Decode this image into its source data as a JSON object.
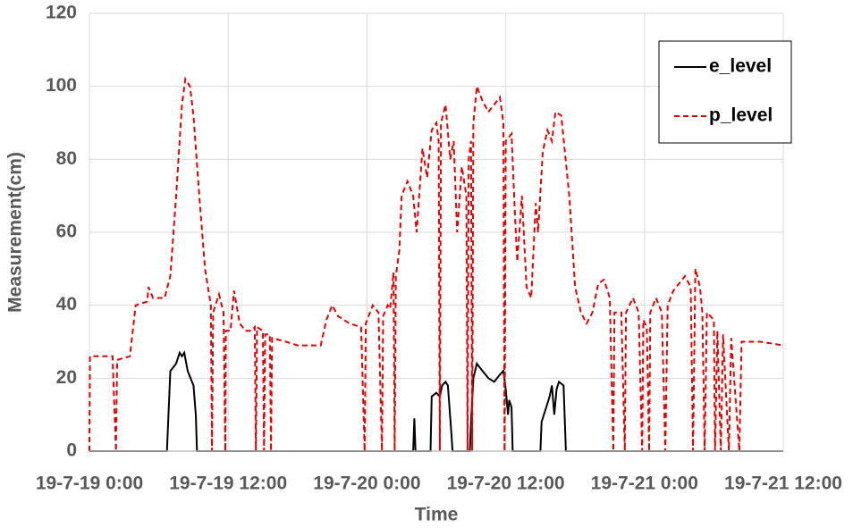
{
  "chart_data": {
    "type": "line",
    "xlabel": "Time",
    "ylabel": "Measurement(cm)",
    "xlim": [
      0,
      60
    ],
    "ylim": [
      0,
      120
    ],
    "xticks": [
      {
        "value": 0,
        "label": "19-7-19 0:00"
      },
      {
        "value": 12,
        "label": "19-7-19 12:00"
      },
      {
        "value": 24,
        "label": "19-7-20 0:00"
      },
      {
        "value": 36,
        "label": "19-7-20 12:00"
      },
      {
        "value": 48,
        "label": "19-7-21 0:00"
      },
      {
        "value": 60,
        "label": "19-7-21 12:00"
      }
    ],
    "yticks": [
      0,
      20,
      40,
      60,
      80,
      100,
      120
    ],
    "grid": true,
    "legend": "upper right",
    "series": [
      {
        "name": "e_level",
        "color": "#000000",
        "dash": "solid",
        "x": [
          0,
          6.7,
          7,
          7.5,
          7.8,
          8,
          8.2,
          8.5,
          9,
          9.2,
          9.3,
          28,
          28.1,
          28.2,
          29.5,
          29.6,
          30,
          30.3,
          30.5,
          30.8,
          31,
          31.3,
          31.4,
          32.9,
          33,
          33.2,
          33.5,
          34,
          34.5,
          35,
          35.5,
          35.8,
          36,
          36.2,
          36.3,
          36.5,
          36.6,
          39,
          39.1,
          39.5,
          39.8,
          40,
          40.2,
          40.4,
          40.6,
          41,
          41.2,
          60
        ],
        "values": [
          0,
          0,
          22,
          24,
          27,
          26,
          27,
          22,
          18,
          10,
          0,
          0,
          9,
          0,
          0,
          15,
          16,
          15,
          18,
          19,
          18,
          5,
          0,
          0,
          8,
          20,
          24,
          22,
          20,
          19,
          21,
          22,
          17,
          10,
          14,
          12,
          0,
          0,
          8,
          12,
          15,
          18,
          10,
          17,
          19,
          18,
          0,
          0
        ]
      },
      {
        "name": "p_level",
        "color": "#e00000",
        "dash": "dashed",
        "x": [
          0,
          0.05,
          2,
          2.3,
          2.4,
          3.5,
          4,
          5,
          5.1,
          5.5,
          6.5,
          7,
          7.5,
          8,
          8.3,
          8.7,
          9,
          9.5,
          10,
          10.5,
          10.6,
          10.7,
          11.2,
          11.6,
          11.75,
          11.8,
          12.2,
          12.5,
          13,
          13.5,
          14,
          14.3,
          14.4,
          14.5,
          15,
          15.1,
          15.2,
          15.6,
          15.7,
          15.8,
          17,
          18,
          20,
          20.5,
          21,
          21.5,
          22.5,
          23.5,
          23.8,
          23.9,
          24.5,
          25,
          25.3,
          25.4,
          25.8,
          26,
          26.3,
          26.4,
          26.5,
          26.8,
          27,
          27.5,
          28,
          28.3,
          28.8,
          29.2,
          29.6,
          30,
          30.2,
          30.3,
          30.4,
          30.8,
          31.2,
          31.5,
          31.8,
          32.2,
          32.6,
          32.7,
          32.8,
          33,
          33.1,
          33.2,
          33.5,
          34,
          34.5,
          35,
          35.5,
          35.8,
          35.9,
          36,
          36.5,
          36.8,
          37,
          37.4,
          37.8,
          38.2,
          38.6,
          38.8,
          39.2,
          39.6,
          40,
          40.3,
          40.8,
          41.5,
          42,
          42.5,
          43,
          43.5,
          44,
          44.5,
          45,
          45.3,
          45.4,
          46,
          46.3,
          46.4,
          47,
          47.5,
          47.8,
          47.9,
          48.2,
          48.4,
          48.5,
          49,
          49.5,
          49.8,
          50,
          50.5,
          51,
          51.5,
          52,
          52.2,
          52.4,
          52.8,
          53,
          53.2,
          53.4,
          54,
          54.1,
          54.3,
          54.6,
          54.8,
          55.3,
          55.5,
          56.2,
          56.4,
          58,
          60
        ],
        "values": [
          0,
          26,
          26,
          0,
          25,
          26,
          40,
          41,
          45,
          42,
          42,
          48,
          70,
          95,
          102,
          100,
          92,
          70,
          50,
          40,
          0,
          38,
          43,
          38,
          0,
          33,
          33,
          44,
          35,
          33,
          33,
          34,
          0,
          34,
          33,
          0,
          32,
          32,
          0,
          31,
          30,
          29,
          29,
          36,
          40,
          37,
          35,
          34,
          0,
          35,
          40,
          38,
          0,
          37,
          40,
          39,
          49,
          0,
          48,
          55,
          70,
          74,
          70,
          60,
          83,
          75,
          88,
          90,
          85,
          0,
          90,
          95,
          80,
          85,
          60,
          78,
          70,
          0,
          80,
          85,
          0,
          90,
          100,
          96,
          93,
          95,
          97,
          90,
          0,
          85,
          87,
          65,
          52,
          70,
          45,
          42,
          68,
          60,
          82,
          88,
          85,
          93,
          92,
          70,
          45,
          38,
          35,
          38,
          46,
          47,
          42,
          0,
          38,
          38,
          0,
          38,
          42,
          38,
          0,
          36,
          34,
          0,
          38,
          42,
          38,
          0,
          40,
          44,
          46,
          48,
          45,
          0,
          50,
          45,
          38,
          0,
          38,
          36,
          0,
          33,
          0,
          32,
          0,
          31,
          0,
          30,
          30,
          29
        ]
      }
    ]
  }
}
